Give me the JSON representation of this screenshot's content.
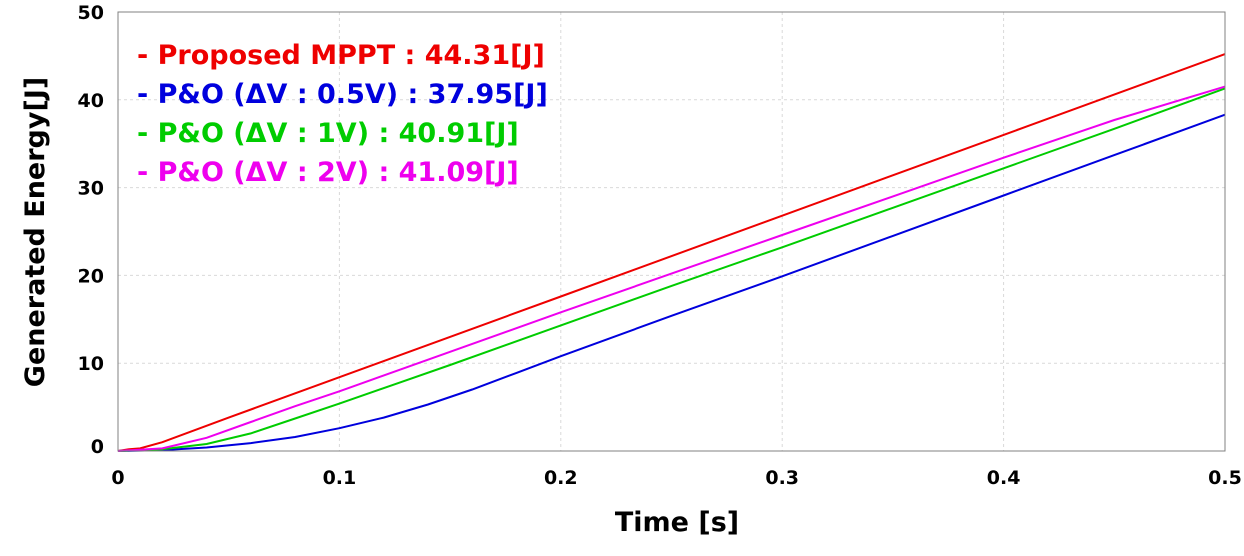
{
  "chart_data": {
    "type": "line",
    "xlabel": "Time [s]",
    "ylabel": "Generated Energy[J]",
    "xlim": [
      0,
      0.5
    ],
    "ylim": [
      0,
      50
    ],
    "xticks": [
      0,
      0.1,
      0.2,
      0.3,
      0.4,
      0.5
    ],
    "xtick_labels": [
      "0",
      "0.1",
      "0.2",
      "0.3",
      "0.4",
      "0.5"
    ],
    "yticks": [
      0,
      10,
      20,
      30,
      40,
      50
    ],
    "ytick_labels": [
      "0",
      "10",
      "20",
      "30",
      "40",
      "50"
    ],
    "grid": true,
    "legend_position": "top-left",
    "series": [
      {
        "name": "- Proposed MPPT : 44.31[J]",
        "color": "#ee0000",
        "x": [
          0,
          0.005,
          0.01,
          0.02,
          0.05,
          0.1,
          0.2,
          0.3,
          0.4,
          0.5
        ],
        "y": [
          0,
          0.2,
          0.3,
          1.0,
          3.8,
          8.4,
          17.6,
          26.8,
          36.0,
          45.2
        ]
      },
      {
        "name": "- P&O (ΔV : 0.5V) : 37.95[J]",
        "color": "#0000dd",
        "x": [
          0,
          0.02,
          0.04,
          0.06,
          0.08,
          0.1,
          0.12,
          0.14,
          0.16,
          0.18,
          0.2,
          0.25,
          0.3,
          0.35,
          0.4,
          0.45,
          0.5
        ],
        "y": [
          0,
          0.1,
          0.4,
          0.9,
          1.6,
          2.6,
          3.8,
          5.3,
          7.0,
          8.9,
          10.8,
          15.4,
          19.9,
          24.5,
          29.1,
          33.7,
          38.3
        ]
      },
      {
        "name": "- P&O (ΔV : 1V) : 40.91[J]",
        "color": "#00cc00",
        "x": [
          0,
          0.02,
          0.04,
          0.06,
          0.08,
          0.1,
          0.15,
          0.2,
          0.25,
          0.3,
          0.35,
          0.4,
          0.45,
          0.5
        ],
        "y": [
          0,
          0.2,
          0.8,
          2.0,
          3.7,
          5.4,
          9.8,
          14.3,
          18.8,
          23.2,
          27.7,
          32.2,
          36.7,
          41.3
        ]
      },
      {
        "name": "- P&O (ΔV : 2V) : 41.09[J]",
        "color": "#ee00ee",
        "x": [
          0,
          0.02,
          0.04,
          0.06,
          0.08,
          0.1,
          0.15,
          0.2,
          0.25,
          0.3,
          0.35,
          0.4,
          0.45,
          0.5
        ],
        "y": [
          0,
          0.3,
          1.5,
          3.3,
          5.1,
          6.8,
          11.3,
          15.8,
          20.2,
          24.6,
          29.0,
          33.4,
          37.7,
          41.5
        ]
      }
    ]
  }
}
